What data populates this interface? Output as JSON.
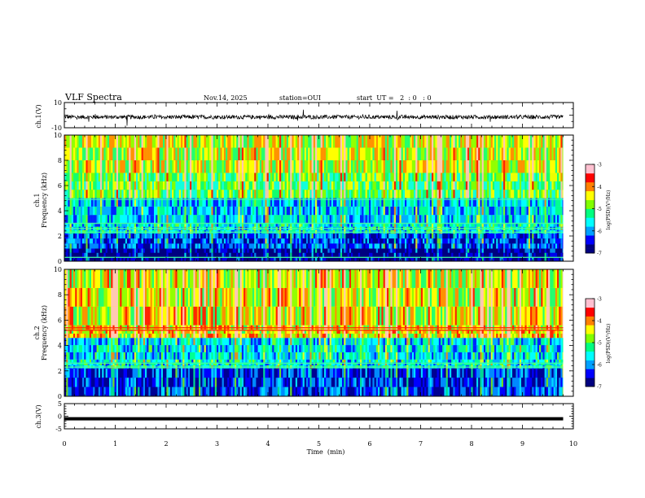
{
  "header": {
    "title": "VLF Spectra",
    "date": "Nov.14, 2025",
    "station": "station=OUI",
    "start": "start  UT =   2  : 0   : 0"
  },
  "colorbar": {
    "label": "log(PSD)(V²/Hz)",
    "ticks": [
      "-3",
      "-4",
      "-5",
      "-6",
      "-7"
    ],
    "colors": [
      "#000080",
      "#0000ff",
      "#00a0ff",
      "#00ffff",
      "#00ff80",
      "#80ff00",
      "#ffff00",
      "#ff8000",
      "#ff0000",
      "#ffc0d0"
    ]
  },
  "chart_data": [
    {
      "type": "line",
      "name": "ch1-waveform",
      "ylabel": "ch.1(V)",
      "ylim": [
        -10,
        10
      ],
      "ytick_labels": [
        "10",
        "-10"
      ],
      "baseline": -1.5,
      "description_values": "noise band about -1.5 V with occasional spikes"
    },
    {
      "type": "heatmap",
      "name": "ch1-spectrogram",
      "ylabel_top": "ch.1",
      "ylabel": "Frequency (kHz)",
      "ylim": [
        0,
        10
      ],
      "ytick_labels": [
        "0",
        "2",
        "4",
        "6",
        "8",
        "10"
      ],
      "xlim": [
        0,
        10
      ],
      "data_end_min": 9.8,
      "bands": [
        {
          "from": 0.0,
          "to": 1.0,
          "level": -6.9
        },
        {
          "from": 1.0,
          "to": 2.2,
          "level": -6.3
        },
        {
          "from": 2.2,
          "to": 3.0,
          "level": -5.6
        },
        {
          "from": 3.0,
          "to": 5.0,
          "level": -5.8
        },
        {
          "from": 5.0,
          "to": 7.0,
          "level": -5.0
        },
        {
          "from": 7.0,
          "to": 10.0,
          "level": -4.6
        }
      ],
      "lines_khz": [
        0.3,
        2.3,
        2.6,
        3.0,
        4.9
      ]
    },
    {
      "type": "heatmap",
      "name": "ch2-spectrogram",
      "ylabel_top": "ch.2",
      "ylabel": "Frequency (kHz)",
      "ylim": [
        0,
        10
      ],
      "ytick_labels": [
        "0",
        "2",
        "4",
        "6",
        "8",
        "10"
      ],
      "xlim": [
        0,
        10
      ],
      "data_end_min": 9.8,
      "bands": [
        {
          "from": 0.0,
          "to": 2.2,
          "level": -6.4
        },
        {
          "from": 2.2,
          "to": 2.9,
          "level": -5.6
        },
        {
          "from": 2.9,
          "to": 4.6,
          "level": -5.7
        },
        {
          "from": 4.6,
          "to": 5.6,
          "level": -4.4
        },
        {
          "from": 5.6,
          "to": 10.0,
          "level": -4.5
        }
      ],
      "lines_khz": [
        2.3,
        2.6,
        5.2,
        5.4
      ]
    },
    {
      "type": "line",
      "name": "ch3-waveform",
      "ylabel": "ch.3(V)",
      "ylim": [
        -5,
        5
      ],
      "ytick_labels": [
        "5",
        "0",
        "-5"
      ],
      "baseline": -1.0
    }
  ],
  "xaxis": {
    "label": "Time  (min)",
    "ticks": [
      "0",
      "1",
      "2",
      "3",
      "4",
      "5",
      "6",
      "7",
      "8",
      "9",
      "10"
    ]
  }
}
